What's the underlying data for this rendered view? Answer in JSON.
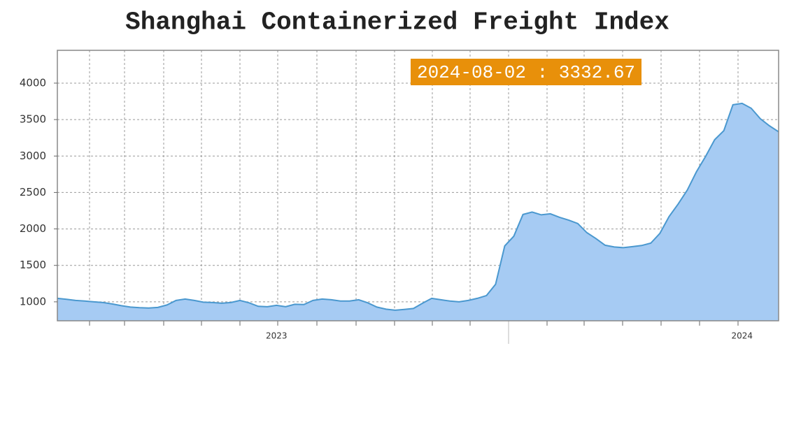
{
  "chart_data": {
    "type": "area",
    "title": "Shanghai Containerized Freight Index",
    "annotation": "2024-08-02 : 3332.67",
    "categories": [
      null,
      null,
      null,
      null,
      null,
      null,
      null,
      null,
      null,
      null,
      null,
      null,
      null,
      null,
      null,
      null,
      null,
      null,
      null,
      null,
      null,
      null,
      null,
      null,
      "2023",
      null,
      null,
      null,
      null,
      null,
      null,
      null,
      null,
      null,
      null,
      null,
      null,
      null,
      null,
      null,
      null,
      null,
      null,
      null,
      null,
      null,
      null,
      null,
      null,
      null,
      null,
      null,
      null,
      null,
      null,
      null,
      null,
      null,
      null,
      null,
      null,
      null,
      null,
      null,
      null,
      null,
      null,
      null,
      null,
      null,
      null,
      null,
      null,
      null,
      null,
      "2024",
      null,
      null,
      null,
      null
    ],
    "values": [
      1048,
      1034,
      1019,
      1010,
      1000,
      990,
      971,
      947,
      928,
      919,
      914,
      923,
      957,
      1019,
      1038,
      1019,
      995,
      990,
      981,
      990,
      1019,
      986,
      938,
      933,
      952,
      933,
      966,
      962,
      1019,
      1038,
      1029,
      1010,
      1010,
      1029,
      986,
      928,
      899,
      885,
      895,
      909,
      981,
      1048,
      1029,
      1010,
      1000,
      1019,
      1048,
      1086,
      1240,
      1767,
      1901,
      2198,
      2232,
      2193,
      2208,
      2160,
      2121,
      2074,
      1949,
      1867,
      1776,
      1752,
      1743,
      1757,
      1772,
      1805,
      1939,
      2169,
      2342,
      2534,
      2783,
      2994,
      3224,
      3348,
      3703,
      3722,
      3655,
      3511,
      3415,
      3332.67
    ],
    "color": "#a6cbf3",
    "line_color": "#4a98cf",
    "ylim": [
      740,
      4450
    ],
    "yticks": [
      1000,
      1500,
      2000,
      2500,
      3000,
      3500,
      4000
    ],
    "grid": true
  }
}
